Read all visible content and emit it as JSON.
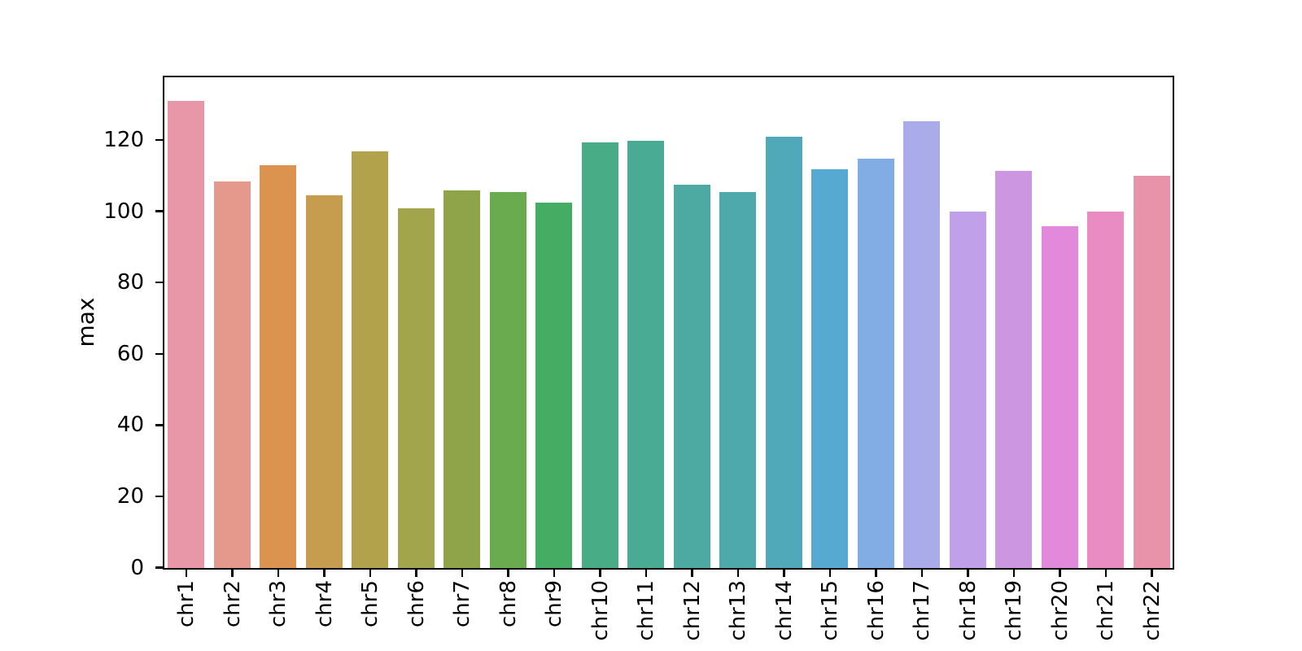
{
  "figure": {
    "background": "#ffffff",
    "axis_color": "#000000",
    "text_color": "#000000"
  },
  "chart_data": {
    "type": "bar",
    "title": "",
    "xlabel": "",
    "ylabel": "max",
    "categories": [
      "chr1",
      "chr2",
      "chr3",
      "chr4",
      "chr5",
      "chr6",
      "chr7",
      "chr8",
      "chr9",
      "chr10",
      "chr11",
      "chr12",
      "chr13",
      "chr14",
      "chr15",
      "chr16",
      "chr17",
      "chr18",
      "chr19",
      "chr20",
      "chr21",
      "chr22"
    ],
    "values": [
      131,
      108.5,
      113,
      104.5,
      117,
      101,
      106,
      105.5,
      102.5,
      119.5,
      120,
      107.5,
      105.5,
      121,
      112,
      115,
      125.5,
      100,
      111.5,
      96,
      100,
      110
    ],
    "bar_colors": [
      "#e897a8",
      "#e5998c",
      "#dd9350",
      "#c69c4e",
      "#b2a24c",
      "#a3a54d",
      "#8fa449",
      "#69ab4e",
      "#45ad63",
      "#48ac86",
      "#4aab95",
      "#4caaa3",
      "#4ea9ad",
      "#50a9b8",
      "#56a9d1",
      "#81ace4",
      "#aaabe9",
      "#c0a0e8",
      "#cd96e0",
      "#e289dc",
      "#e88cc3",
      "#e993aa"
    ],
    "yticks": [
      0,
      20,
      40,
      60,
      80,
      100,
      120
    ],
    "ylim": [
      0,
      137.5
    ],
    "xticklabel_rotation": 90,
    "grid": false,
    "legend": false
  }
}
